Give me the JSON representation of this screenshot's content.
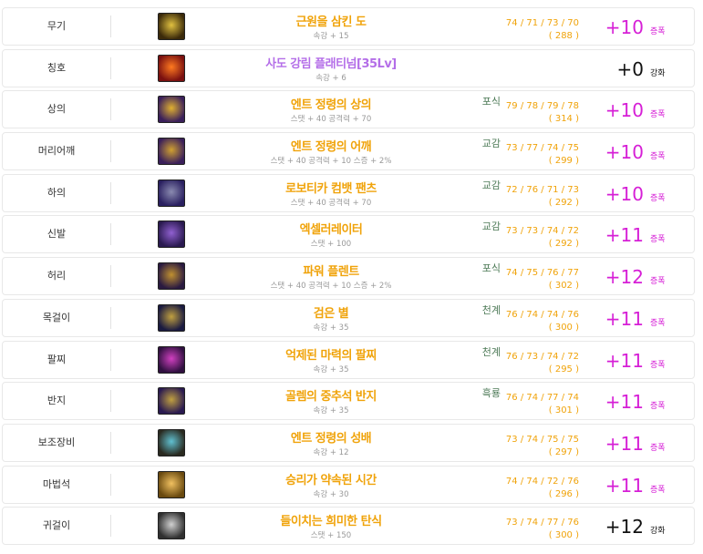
{
  "colors": {
    "item_name": "#f0a30a",
    "title_name": "#b46ee8",
    "amplify": "#d61fd6",
    "reinforce": "#111111",
    "tag": "#4d7a57"
  },
  "rows": [
    {
      "slot": "무기",
      "name": "근원을 삼킨 도",
      "option": "속강 + 15",
      "tag": "",
      "stats": "74 / 71 / 73 / 70",
      "total": "( 288 )",
      "upgrade": "+10",
      "type": "증폭",
      "icon": "weapon-sword-icon",
      "c1": "#3b2a0a",
      "c2": "#e0c040"
    },
    {
      "slot": "칭호",
      "name": "사도 강림 플래티넘[35Lv]",
      "option": "속강 + 6",
      "tag": "",
      "stats": "",
      "total": "",
      "upgrade": "+0",
      "type": "강화",
      "icon": "title-emblem-icon",
      "c1": "#7a1010",
      "c2": "#ff7a20"
    },
    {
      "slot": "상의",
      "name": "엔트 정령의 상의",
      "option": "스탯 + 40 공격력 + 70",
      "tag": "포식",
      "stats": "79 / 78 / 79 / 78",
      "total": "( 314 )",
      "upgrade": "+10",
      "type": "증폭",
      "icon": "coat-icon",
      "c1": "#3a1f5a",
      "c2": "#e0b030"
    },
    {
      "slot": "머리어깨",
      "name": "엔트 정령의 어깨",
      "option": "스탯 + 40 공격력 + 10 스증 + 2%",
      "tag": "교감",
      "stats": "73 / 77 / 74 / 75",
      "total": "( 299 )",
      "upgrade": "+10",
      "type": "증폭",
      "icon": "shoulder-icon",
      "c1": "#3a1f5a",
      "c2": "#d0a030"
    },
    {
      "slot": "하의",
      "name": "로보티카 컴뱃 팬츠",
      "option": "스탯 + 40 공격력 + 70",
      "tag": "교감",
      "stats": "72 / 76 / 71 / 73",
      "total": "( 292 )",
      "upgrade": "+10",
      "type": "증폭",
      "icon": "pants-icon",
      "c1": "#2a2060",
      "c2": "#8a8ab0"
    },
    {
      "slot": "신발",
      "name": "엑셀러레이터",
      "option": "스탯 + 100",
      "tag": "교감",
      "stats": "73 / 73 / 74 / 72",
      "total": "( 292 )",
      "upgrade": "+11",
      "type": "증폭",
      "icon": "shoes-icon",
      "c1": "#2a1a50",
      "c2": "#9060d0"
    },
    {
      "slot": "허리",
      "name": "파워 플렌트",
      "option": "스탯 + 40 공격력 + 10 스증 + 2%",
      "tag": "포식",
      "stats": "74 / 75 / 76 / 77",
      "total": "( 302 )",
      "upgrade": "+12",
      "type": "증폭",
      "icon": "belt-icon",
      "c1": "#2a1a40",
      "c2": "#c09030"
    },
    {
      "slot": "목걸이",
      "name": "검은 별",
      "option": "속강 + 35",
      "tag": "천계",
      "stats": "76 / 74 / 74 / 76",
      "total": "( 300 )",
      "upgrade": "+11",
      "type": "증폭",
      "icon": "necklace-icon",
      "c1": "#1a1a40",
      "c2": "#c0a040"
    },
    {
      "slot": "팔찌",
      "name": "억제된 마력의 팔찌",
      "option": "속강 + 35",
      "tag": "천계",
      "stats": "76 / 73 / 74 / 72",
      "total": "( 295 )",
      "upgrade": "+11",
      "type": "증폭",
      "icon": "bracelet-icon",
      "c1": "#301040",
      "c2": "#d040c0"
    },
    {
      "slot": "반지",
      "name": "골렘의 중추석 반지",
      "option": "속강 + 35",
      "tag": "흑룡",
      "stats": "76 / 74 / 77 / 74",
      "total": "( 301 )",
      "upgrade": "+11",
      "type": "증폭",
      "icon": "ring-icon",
      "c1": "#2a1a50",
      "c2": "#c0a040"
    },
    {
      "slot": "보조장비",
      "name": "엔트 정령의 성배",
      "option": "속강 + 12",
      "tag": "",
      "stats": "73 / 74 / 75 / 75",
      "total": "( 297 )",
      "upgrade": "+11",
      "type": "증폭",
      "icon": "chalice-icon",
      "c1": "#2a2a20",
      "c2": "#60c0d0"
    },
    {
      "slot": "마법석",
      "name": "승리가 약속된 시간",
      "option": "속강 + 30",
      "tag": "",
      "stats": "74 / 74 / 72 / 76",
      "total": "( 296 )",
      "upgrade": "+11",
      "type": "증폭",
      "icon": "magic-stone-icon",
      "c1": "#6a4a10",
      "c2": "#f0c060"
    },
    {
      "slot": "귀걸이",
      "name": "들이치는 희미한 탄식",
      "option": "스탯 + 150",
      "tag": "",
      "stats": "73 / 74 / 77 / 76",
      "total": "( 300 )",
      "upgrade": "+12",
      "type": "강화",
      "icon": "earring-icon",
      "c1": "#303030",
      "c2": "#d0d0d0"
    }
  ]
}
